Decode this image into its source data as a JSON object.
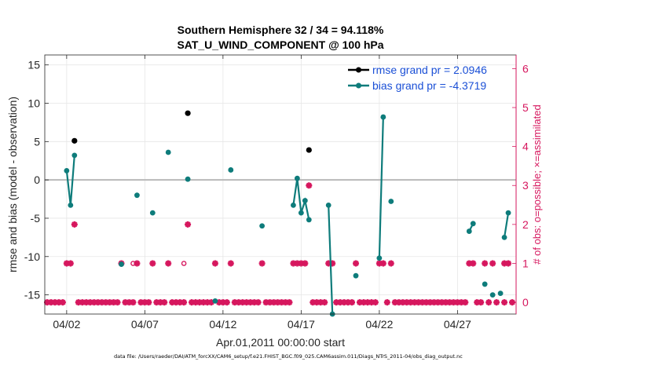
{
  "chart_data": {
    "type": "line",
    "title_line1": "Southern Hemisphere 32 / 34 = 94.118%",
    "title_line2": "SAT_U_WIND_COMPONENT @ 100 hPa",
    "xlabel": "Apr.01,2011 00:00:00 start",
    "ylabel_left": "rmse and bias (model - observation)",
    "ylabel_right": "# of obs: o=possible; ×=assimilated",
    "footer": "data file: /Users/raeder/DAI/ATM_forcXX/CAM6_setup/f.e21.FHIST_BGC.f09_025.CAM6assim.011/Diags_NTrS_2011-04/obs_diag_output.nc",
    "xlim": [
      0.6,
      30.75
    ],
    "ylim_left": [
      -17.5,
      16.3
    ],
    "ylim_right": [
      -0.3,
      6.35
    ],
    "x_ticks": [
      {
        "x": 2,
        "label": "04/02"
      },
      {
        "x": 7,
        "label": "04/07"
      },
      {
        "x": 12,
        "label": "04/12"
      },
      {
        "x": 17,
        "label": "04/17"
      },
      {
        "x": 22,
        "label": "04/22"
      },
      {
        "x": 27,
        "label": "04/27"
      }
    ],
    "y_ticks_left": [
      15,
      10,
      5,
      0,
      -5,
      -10,
      -15
    ],
    "y_ticks_right": [
      6,
      5,
      4,
      3,
      2,
      1,
      0
    ],
    "zero_line": 0,
    "legend": [
      {
        "label": "rmse grand pr = 2.0946",
        "color": "#000000"
      },
      {
        "label": "bias grand pr = -4.3719",
        "color": "#0e7c7b"
      }
    ],
    "rmse": [
      [
        2.5,
        5.1
      ],
      [
        9.75,
        8.7
      ],
      [
        17.5,
        3.9
      ]
    ],
    "bias_segments": [
      [
        [
          2.0,
          1.2
        ],
        [
          2.25,
          -3.3
        ],
        [
          2.5,
          3.2
        ]
      ],
      [
        [
          5.5,
          -11.0
        ]
      ],
      [
        [
          6.5,
          -2.0
        ]
      ],
      [
        [
          7.5,
          -4.3
        ]
      ],
      [
        [
          8.5,
          3.6
        ]
      ],
      [
        [
          9.75,
          0.1
        ]
      ],
      [
        [
          11.5,
          -15.8
        ]
      ],
      [
        [
          12.5,
          1.3
        ]
      ],
      [
        [
          14.5,
          -6.0
        ]
      ],
      [
        [
          16.5,
          -3.3
        ],
        [
          16.75,
          0.2
        ],
        [
          17.0,
          -4.3
        ],
        [
          17.25,
          -2.7
        ],
        [
          17.5,
          -5.2
        ]
      ],
      [
        [
          18.75,
          -3.3
        ],
        [
          19.0,
          -17.5
        ]
      ],
      [
        [
          20.5,
          -12.5
        ]
      ],
      [
        [
          22.0,
          -10.2
        ],
        [
          22.25,
          8.2
        ]
      ],
      [
        [
          22.75,
          -2.8
        ]
      ],
      [
        [
          27.75,
          -6.7
        ],
        [
          28.0,
          -5.7
        ]
      ],
      [
        [
          28.75,
          -13.6
        ]
      ],
      [
        [
          29.25,
          -15.0
        ]
      ],
      [
        [
          29.75,
          -14.8
        ]
      ],
      [
        [
          30.0,
          -7.5
        ],
        [
          30.25,
          -4.3
        ]
      ]
    ],
    "obs_assimilated": {
      "color": "#d6175e",
      "count0_x": [
        0.75,
        1.0,
        1.25,
        1.5,
        1.75,
        2.75,
        3.0,
        3.25,
        3.5,
        3.75,
        4.0,
        4.25,
        4.5,
        4.75,
        5.0,
        5.25,
        5.75,
        6.0,
        6.25,
        6.75,
        7.0,
        7.25,
        7.75,
        8.0,
        8.25,
        8.75,
        9.0,
        9.25,
        9.5,
        10.0,
        10.25,
        10.5,
        10.75,
        11.0,
        11.25,
        11.75,
        12.0,
        12.25,
        12.75,
        13.0,
        13.25,
        13.5,
        13.75,
        14.0,
        14.25,
        14.75,
        15.0,
        15.25,
        15.5,
        15.75,
        16.0,
        16.25,
        17.75,
        18.0,
        18.25,
        18.5,
        19.25,
        19.5,
        19.75,
        20.0,
        20.25,
        20.75,
        21.0,
        21.25,
        21.5,
        21.75,
        22.5,
        23.0,
        23.25,
        23.5,
        23.75,
        24.0,
        24.25,
        24.5,
        24.75,
        25.0,
        25.25,
        25.5,
        25.75,
        26.0,
        26.25,
        26.5,
        26.75,
        27.0,
        27.25,
        27.5,
        28.25,
        28.5,
        29.0,
        29.5,
        30.0,
        30.5
      ],
      "count1_x": [
        2.0,
        2.25,
        5.5,
        6.5,
        7.5,
        8.5,
        11.5,
        12.5,
        14.5,
        16.5,
        16.75,
        17.0,
        17.25,
        18.75,
        19.0,
        20.5,
        22.0,
        22.25,
        22.75,
        27.75,
        28.0,
        28.75,
        29.25,
        30.0,
        30.25
      ],
      "count2_x": [
        2.5,
        9.75
      ],
      "count3_x": [
        17.5
      ]
    },
    "obs_possible_only": [
      [
        6.25,
        1
      ],
      [
        9.5,
        1
      ]
    ]
  }
}
